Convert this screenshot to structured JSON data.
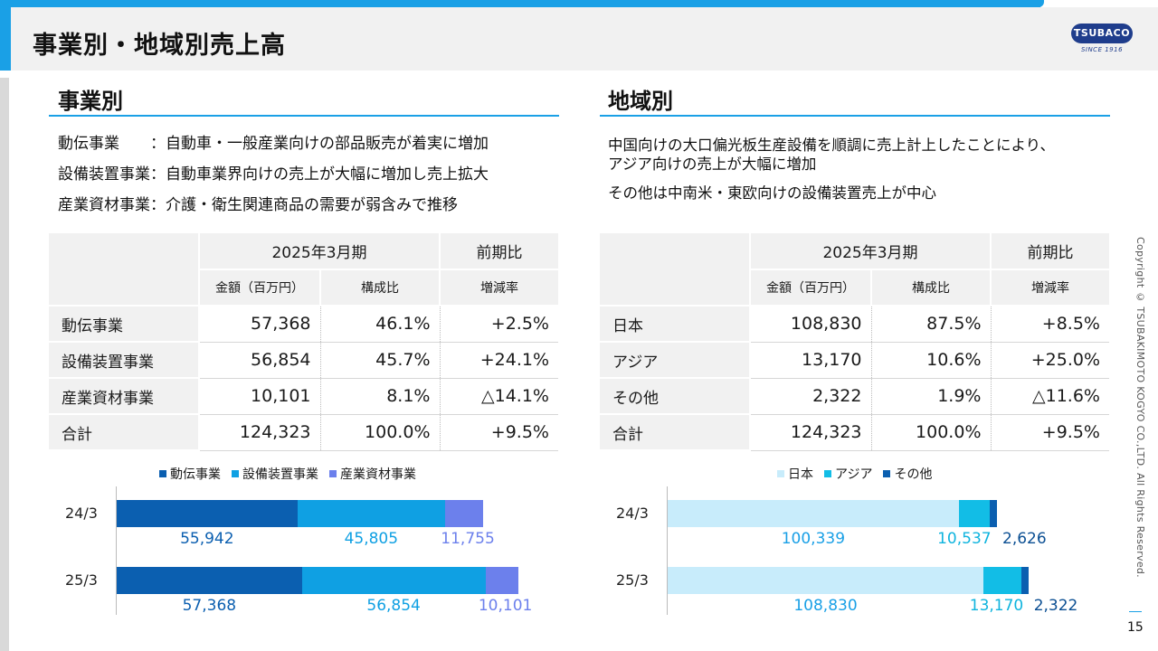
{
  "header": {
    "title": "事業別・地域別売上高"
  },
  "logo": {
    "name": "TSUBACO",
    "since": "SINCE 1916"
  },
  "business": {
    "heading": "事業別",
    "notes": [
      {
        "label": "動伝事業　　",
        "text": "：自動車・一般産業向けの部品販売が着実に増加"
      },
      {
        "label": "設備装置事業",
        "text": "：自動車業界向けの売上が大幅に増加し売上拡大"
      },
      {
        "label": "産業資材事業",
        "text": "：介護・衛生関連商品の需要が弱含みで推移"
      }
    ],
    "table": {
      "period": "2025年3月期",
      "yoy": "前期比",
      "col_amount": "金額（百万円）",
      "col_ratio": "構成比",
      "col_change": "増減率",
      "rows": [
        {
          "name": "動伝事業",
          "amount": "57,368",
          "ratio": "46.1%",
          "change": "+2.5%"
        },
        {
          "name": "設備装置事業",
          "amount": "56,854",
          "ratio": "45.7%",
          "change": "+24.1%"
        },
        {
          "name": "産業資材事業",
          "amount": "10,101",
          "ratio": "8.1%",
          "change": "△14.1%"
        },
        {
          "name": "合計",
          "amount": "124,323",
          "ratio": "100.0%",
          "change": "+9.5%"
        }
      ]
    }
  },
  "region": {
    "heading": "地域別",
    "notes": [
      "中国向けの大口偏光板生産設備を順調に売上計上したことにより、",
      "アジア向けの売上が大幅に増加",
      "その他は中南米・東欧向けの設備装置売上が中心"
    ],
    "table": {
      "period": "2025年3月期",
      "yoy": "前期比",
      "col_amount": "金額（百万円）",
      "col_ratio": "構成比",
      "col_change": "増減率",
      "rows": [
        {
          "name": "日本",
          "amount": "108,830",
          "ratio": "87.5%",
          "change": "+8.5%"
        },
        {
          "name": "アジア",
          "amount": "13,170",
          "ratio": "10.6%",
          "change": "+25.0%"
        },
        {
          "name": "その他",
          "amount": "2,322",
          "ratio": "1.9%",
          "change": "△11.6%"
        },
        {
          "name": "合計",
          "amount": "124,323",
          "ratio": "100.0%",
          "change": "+9.5%"
        }
      ]
    }
  },
  "chart_data": [
    {
      "type": "bar",
      "orientation": "horizontal-stacked",
      "categories": [
        "24/3",
        "25/3"
      ],
      "series": [
        {
          "name": "動伝事業",
          "color": "#0b5fb0",
          "values": [
            55942,
            57368
          ],
          "labels": [
            "55,942",
            "57,368"
          ]
        },
        {
          "name": "設備装置事業",
          "color": "#0fa0e3",
          "values": [
            45805,
            56854
          ],
          "labels": [
            "45,805",
            "56,854"
          ]
        },
        {
          "name": "産業資材事業",
          "color": "#6c80ec",
          "values": [
            11755,
            10101
          ],
          "labels": [
            "11,755",
            "10,101"
          ]
        }
      ],
      "legend": "top"
    },
    {
      "type": "bar",
      "orientation": "horizontal-stacked",
      "categories": [
        "24/3",
        "25/3"
      ],
      "series": [
        {
          "name": "日本",
          "color": "#c8ecfb",
          "values": [
            100339,
            108830
          ],
          "labels": [
            "100,339",
            "108,830"
          ]
        },
        {
          "name": "アジア",
          "color": "#12bde6",
          "values": [
            10537,
            13170
          ],
          "labels": [
            "10,537",
            "13,170"
          ]
        },
        {
          "name": "その他",
          "color": "#0b5fb0",
          "values": [
            2626,
            2322
          ],
          "labels": [
            "2,626",
            "2,322"
          ]
        }
      ],
      "legend": "top"
    }
  ],
  "footer": {
    "copyright": "Copyright © TSUBAKIMOTO KOGYO CO.,LTD. All Rights Reserved.",
    "page": "15"
  }
}
